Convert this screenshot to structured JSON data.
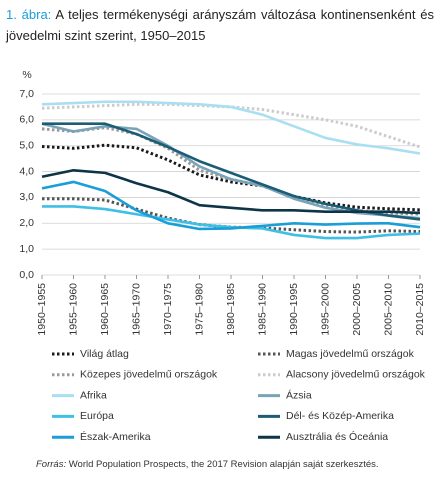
{
  "chart_data": {
    "type": "line",
    "figure_label": "1. ábra:",
    "title": "A teljes termékenységi arányszám változása kontinensenként és jövedelmi szint szerint, 1950–2015",
    "y_label": "%",
    "categories": [
      "1950–1955",
      "1955–1960",
      "1960–1965",
      "1965–1970",
      "1970–1975",
      "1975–1980",
      "1980–1985",
      "1985–1990",
      "1990–1995",
      "1995–2000",
      "2000–2005",
      "2005–2010",
      "2010–2015"
    ],
    "ylim": [
      0,
      7
    ],
    "yticks": [
      {
        "value": 0,
        "label": "0,0"
      },
      {
        "value": 1,
        "label": "1,0"
      },
      {
        "value": 2,
        "label": "2,0"
      },
      {
        "value": 3,
        "label": "3,0"
      },
      {
        "value": 4,
        "label": "4,0"
      },
      {
        "value": 5,
        "label": "5,0"
      },
      {
        "value": 6,
        "label": "6,0"
      },
      {
        "value": 7,
        "label": "7,0"
      }
    ],
    "grid": true,
    "series": [
      {
        "name": "Világ átlag",
        "color": "#1a1a1a",
        "style": "dotted",
        "values": [
          4.97,
          4.9,
          5.02,
          4.92,
          4.45,
          3.87,
          3.6,
          3.45,
          3.04,
          2.79,
          2.62,
          2.56,
          2.52
        ]
      },
      {
        "name": "Magas jövedelmű országok",
        "color": "#555555",
        "style": "dotted",
        "values": [
          2.95,
          2.95,
          2.9,
          2.55,
          2.2,
          1.95,
          1.85,
          1.82,
          1.75,
          1.68,
          1.66,
          1.71,
          1.68
        ]
      },
      {
        "name": "Közepes jövedelmű országok",
        "color": "#9a9a9a",
        "style": "dotted",
        "values": [
          5.65,
          5.55,
          5.7,
          5.45,
          4.9,
          4.05,
          3.7,
          3.45,
          3.0,
          2.7,
          2.5,
          2.4,
          2.35
        ]
      },
      {
        "name": "Alacsony jövedelmű országok",
        "color": "#cccccc",
        "style": "dotted",
        "values": [
          6.45,
          6.5,
          6.55,
          6.6,
          6.6,
          6.55,
          6.5,
          6.4,
          6.2,
          6.0,
          5.75,
          5.35,
          4.95
        ]
      },
      {
        "name": "Afrika",
        "color": "#a9dff2",
        "style": "solid",
        "values": [
          6.6,
          6.65,
          6.7,
          6.7,
          6.65,
          6.6,
          6.5,
          6.2,
          5.75,
          5.3,
          5.05,
          4.9,
          4.7
        ]
      },
      {
        "name": "Ázsia",
        "color": "#7aa3b8",
        "style": "solid",
        "values": [
          5.85,
          5.55,
          5.75,
          5.65,
          5.0,
          4.2,
          3.7,
          3.45,
          2.95,
          2.6,
          2.4,
          2.3,
          2.2
        ]
      },
      {
        "name": "Európa",
        "color": "#3fbfe6",
        "style": "solid",
        "values": [
          2.65,
          2.65,
          2.55,
          2.35,
          2.15,
          1.95,
          1.85,
          1.8,
          1.55,
          1.43,
          1.43,
          1.55,
          1.6
        ]
      },
      {
        "name": "Dél- és Közép-Amerika",
        "color": "#1a5d75",
        "style": "solid",
        "values": [
          5.85,
          5.85,
          5.85,
          5.45,
          4.95,
          4.4,
          3.95,
          3.5,
          3.05,
          2.75,
          2.5,
          2.3,
          2.15
        ]
      },
      {
        "name": "Észak-Amerika",
        "color": "#1a9ed8",
        "style": "solid",
        "values": [
          3.35,
          3.6,
          3.25,
          2.5,
          2.0,
          1.78,
          1.8,
          1.9,
          2.0,
          1.95,
          1.99,
          2.0,
          1.85
        ]
      },
      {
        "name": "Ausztrália és Óceánia",
        "color": "#0d3447",
        "style": "solid",
        "values": [
          3.8,
          4.05,
          3.95,
          3.55,
          3.2,
          2.7,
          2.6,
          2.5,
          2.5,
          2.45,
          2.45,
          2.45,
          2.4
        ]
      }
    ],
    "source_label": "Forrás:",
    "source": "World Population Prospects, the 2017 Revision alapján saját szerkesztés."
  }
}
